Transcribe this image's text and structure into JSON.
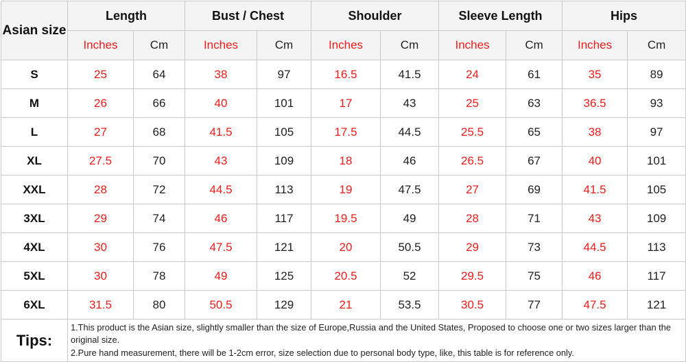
{
  "chart_data": {
    "type": "table",
    "corner_label": "Asian size",
    "groups": [
      "Length",
      "Bust / Chest",
      "Shoulder",
      "Sleeve Length",
      "Hips"
    ],
    "units": {
      "inches": "Inches",
      "cm": "Cm"
    },
    "columns": [
      "Asian size",
      "Length Inches",
      "Length Cm",
      "Bust / Chest Inches",
      "Bust / Chest Cm",
      "Shoulder Inches",
      "Shoulder Cm",
      "Sleeve Length Inches",
      "Sleeve Length Cm",
      "Hips Inches",
      "Hips Cm"
    ],
    "rows": [
      {
        "size": "S",
        "values": [
          25,
          64,
          38,
          97,
          16.5,
          41.5,
          24,
          61,
          35,
          89
        ]
      },
      {
        "size": "M",
        "values": [
          26,
          66,
          40,
          101,
          17,
          43,
          25,
          63,
          36.5,
          93
        ]
      },
      {
        "size": "L",
        "values": [
          27,
          68,
          41.5,
          105,
          17.5,
          44.5,
          25.5,
          65,
          38,
          97
        ]
      },
      {
        "size": "XL",
        "values": [
          27.5,
          70,
          43,
          109,
          18,
          46,
          26.5,
          67,
          40,
          101
        ]
      },
      {
        "size": "XXL",
        "values": [
          28,
          72,
          44.5,
          113,
          19,
          47.5,
          27,
          69,
          41.5,
          105
        ]
      },
      {
        "size": "3XL",
        "values": [
          29,
          74,
          46,
          117,
          19.5,
          49,
          28,
          71,
          43,
          109
        ]
      },
      {
        "size": "4XL",
        "values": [
          30,
          76,
          47.5,
          121,
          20,
          50.5,
          29,
          73,
          44.5,
          113
        ]
      },
      {
        "size": "5XL",
        "values": [
          30,
          78,
          49,
          125,
          20.5,
          52,
          29.5,
          75,
          46,
          117
        ]
      },
      {
        "size": "6XL",
        "values": [
          31.5,
          80,
          50.5,
          129,
          21,
          53.5,
          30.5,
          77,
          47.5,
          121
        ]
      }
    ],
    "tips_label": "Tips:",
    "tips": [
      "1.This product is the Asian size, slightly smaller than the size of Europe,Russia and the United States, Proposed to choose one or two sizes larger than the original size.",
      "2.Pure hand measurement, there will be 1-2cm error, size selection due to personal body type, like, this table is for reference only."
    ],
    "colors": {
      "inches_text": "#ee1c1c",
      "value_text": "#1f1f1f",
      "header_bg": "#f4f4f4",
      "border": "#c9c9c9"
    }
  }
}
